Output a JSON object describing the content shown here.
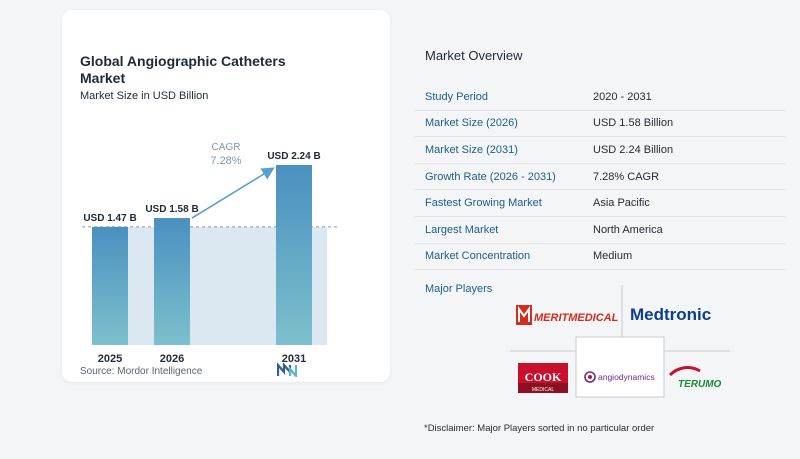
{
  "chart": {
    "title": "Global Angiographic Catheters Market",
    "subtitle": "Market Size in USD Billion",
    "source": "Source:  Mordor Intelligence"
  },
  "chart_data": {
    "type": "bar",
    "categories": [
      "2025",
      "2026",
      "2031"
    ],
    "values": [
      1.47,
      1.58,
      2.24
    ],
    "value_labels": [
      "USD 1.47 B",
      "USD 1.58 B",
      "USD 2.24 B"
    ],
    "cagr_label": "CAGR",
    "cagr_value": "7.28%",
    "title": "Global Angiographic Catheters Market",
    "subtitle": "Market Size in USD Billion",
    "ylim": [
      0,
      2.24
    ],
    "grid": false,
    "colors": {
      "bar_top": "#4a90c0",
      "bar_bottom": "#7dc0cc",
      "band": "#dbe8f1",
      "cagr_text": "#7b98b4",
      "arrow": "#5b9fce"
    }
  },
  "overview": {
    "title": "Market Overview",
    "rows": [
      {
        "label": "Study Period",
        "value": "2020 - 2031"
      },
      {
        "label": "Market Size (2026)",
        "value": "USD 1.58 Billion"
      },
      {
        "label": "Market Size (2031)",
        "value": "USD 2.24 Billion"
      },
      {
        "label": "Growth Rate (2026 - 2031)",
        "value": "7.28% CAGR"
      },
      {
        "label": "Fastest Growing Market",
        "value": "Asia Pacific"
      },
      {
        "label": "Largest Market",
        "value": "North America"
      },
      {
        "label": "Market Concentration",
        "value": "Medium"
      }
    ]
  },
  "players": {
    "title": "Major Players",
    "logos": {
      "merit": "MERITMEDICAL",
      "medtronic": "Medtronic",
      "cook_top": "COOK",
      "cook_bottom": "MEDICAL",
      "angiodynamics": "angiodynamics",
      "terumo": "TERUMO"
    },
    "colors": {
      "merit": "#d52b1e",
      "medtronic": "#0b3d91",
      "cook": "#c8102e",
      "angio": "#6b2c8f",
      "terumo": "#1a8a3a"
    }
  },
  "disclaimer": "*Disclaimer: Major Players sorted in no particular order"
}
